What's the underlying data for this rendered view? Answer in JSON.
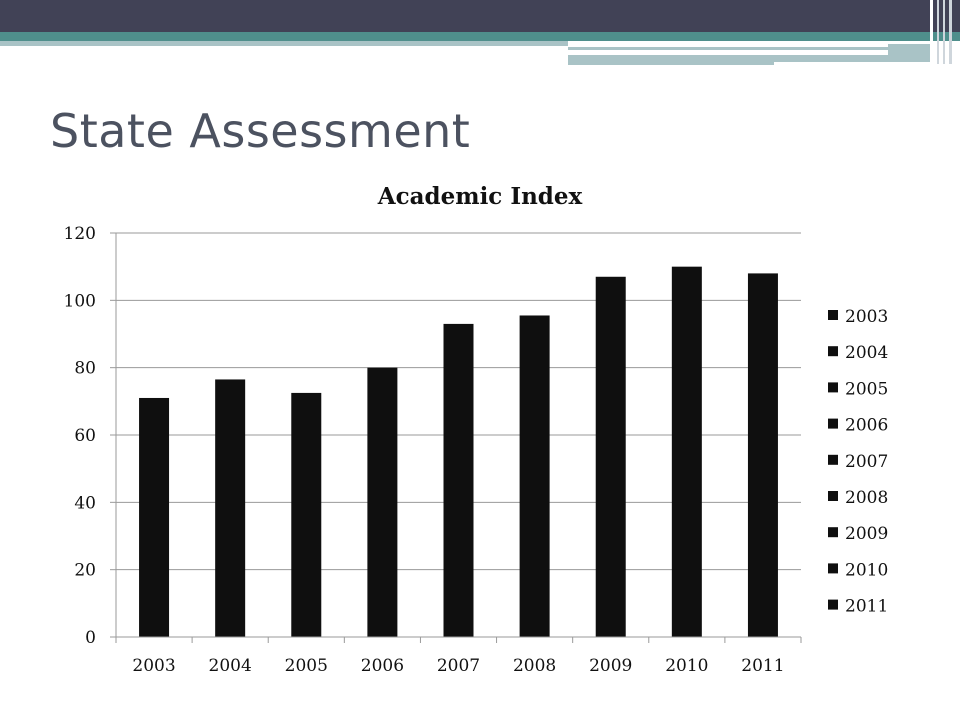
{
  "slide": {
    "title": "State Assessment"
  },
  "theme": {
    "title_color": "#4c5260",
    "header_dark": "#414256",
    "header_teal": "#4f8f8c",
    "header_light": "#a9c3c6",
    "bar_color": "#0f0f0f"
  },
  "chart_data": {
    "type": "bar",
    "title": "Academic Index",
    "xlabel": "",
    "ylabel": "",
    "categories": [
      "2003",
      "2004",
      "2005",
      "2006",
      "2007",
      "2008",
      "2009",
      "2010",
      "2011"
    ],
    "values": [
      71,
      76.5,
      72.5,
      80,
      93,
      95.5,
      107,
      110,
      108
    ],
    "ylim": [
      0,
      120
    ],
    "yticks": [
      0,
      20,
      40,
      60,
      80,
      100,
      120
    ],
    "grid": true,
    "legend": {
      "position": "right",
      "entries": [
        "2003",
        "2004",
        "2005",
        "2006",
        "2007",
        "2008",
        "2009",
        "2010",
        "2011"
      ]
    }
  }
}
